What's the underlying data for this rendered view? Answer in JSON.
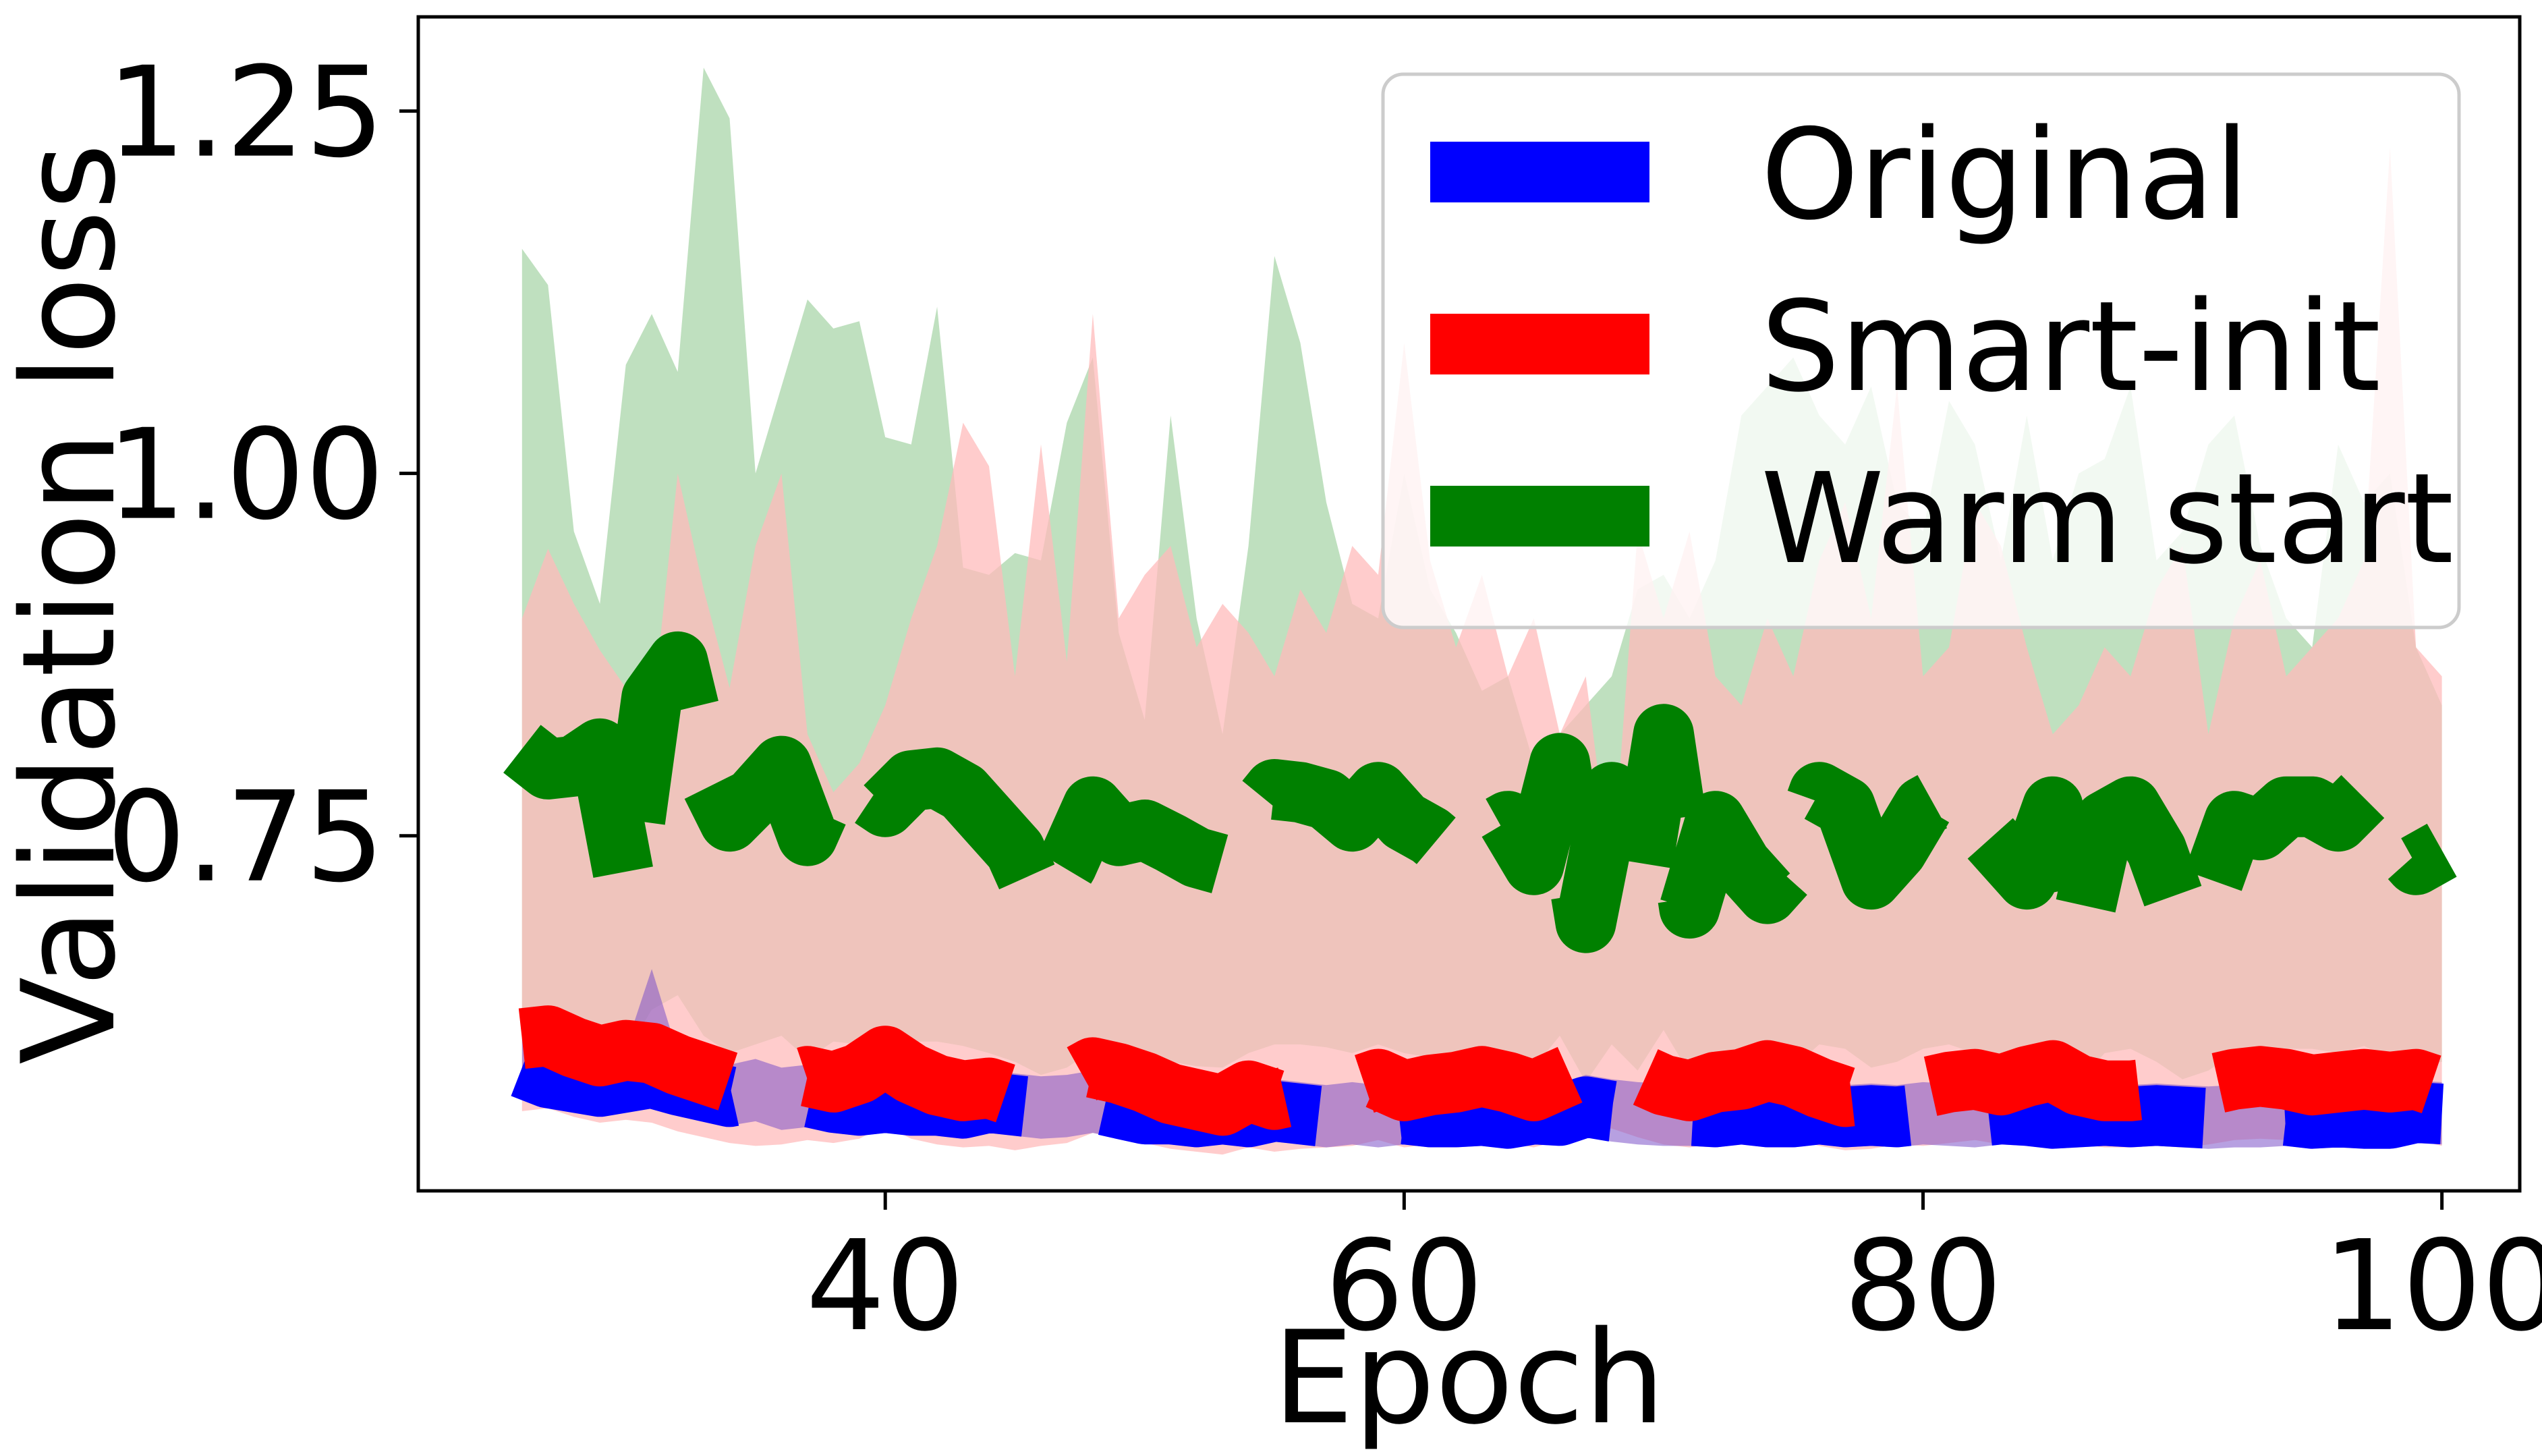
{
  "chart_data": {
    "type": "line",
    "title": "",
    "xlabel": "Epoch",
    "ylabel": "Validation loss",
    "xlim": [
      22,
      103
    ],
    "ylim": [
      0.505,
      1.315
    ],
    "xticks": [
      40,
      60,
      80,
      100
    ],
    "xtick_labels": [
      "40",
      "60",
      "80",
      "100"
    ],
    "yticks": [
      0.75,
      1.0,
      1.25
    ],
    "ytick_labels": [
      "0.75",
      "1.00",
      "1.25"
    ],
    "grid": false,
    "legend": {
      "placement": "top-right"
    },
    "x": [
      26,
      27,
      28,
      29,
      30,
      31,
      32,
      33,
      34,
      35,
      36,
      37,
      38,
      39,
      40,
      41,
      42,
      43,
      44,
      45,
      46,
      47,
      48,
      49,
      50,
      51,
      52,
      53,
      54,
      55,
      56,
      57,
      58,
      59,
      60,
      61,
      62,
      63,
      64,
      65,
      66,
      67,
      68,
      69,
      70,
      71,
      72,
      73,
      74,
      75,
      76,
      77,
      78,
      79,
      80,
      81,
      82,
      83,
      84,
      85,
      86,
      87,
      88,
      89,
      90,
      91,
      92,
      93,
      94,
      95,
      96,
      97,
      98,
      99,
      100
    ],
    "series": [
      {
        "name": "Original",
        "color": "#0000ff",
        "band_color": "#7b52c9",
        "values": [
          0.59,
          0.583,
          0.58,
          0.577,
          0.58,
          0.583,
          0.578,
          0.574,
          0.57,
          0.574,
          0.568,
          0.57,
          0.566,
          0.564,
          0.566,
          0.564,
          0.564,
          0.562,
          0.566,
          0.564,
          0.562,
          0.563,
          0.566,
          0.562,
          0.558,
          0.558,
          0.556,
          0.558,
          0.556,
          0.56,
          0.558,
          0.556,
          0.558,
          0.556,
          0.558,
          0.556,
          0.556,
          0.557,
          0.555,
          0.558,
          0.557,
          0.563,
          0.56,
          0.558,
          0.557,
          0.557,
          0.556,
          0.558,
          0.556,
          0.556,
          0.558,
          0.556,
          0.557,
          0.556,
          0.558,
          0.557,
          0.556,
          0.558,
          0.557,
          0.555,
          0.556,
          0.557,
          0.556,
          0.557,
          0.556,
          0.555,
          0.556,
          0.556,
          0.557,
          0.555,
          0.556,
          0.555,
          0.555,
          0.559,
          0.558
        ],
        "lower": [
          0.568,
          0.562,
          0.56,
          0.557,
          0.56,
          0.562,
          0.557,
          0.553,
          0.55,
          0.553,
          0.547,
          0.549,
          0.545,
          0.543,
          0.545,
          0.543,
          0.543,
          0.541,
          0.545,
          0.543,
          0.541,
          0.542,
          0.545,
          0.541,
          0.537,
          0.537,
          0.535,
          0.537,
          0.535,
          0.539,
          0.537,
          0.535,
          0.537,
          0.535,
          0.537,
          0.535,
          0.535,
          0.536,
          0.534,
          0.537,
          0.536,
          0.542,
          0.539,
          0.537,
          0.536,
          0.536,
          0.535,
          0.537,
          0.535,
          0.535,
          0.537,
          0.535,
          0.536,
          0.535,
          0.537,
          0.536,
          0.535,
          0.537,
          0.536,
          0.534,
          0.535,
          0.536,
          0.535,
          0.536,
          0.535,
          0.534,
          0.535,
          0.535,
          0.536,
          0.534,
          0.535,
          0.534,
          0.534,
          0.538,
          0.537
        ],
        "upper": [
          0.612,
          0.606,
          0.602,
          0.598,
          0.604,
          0.658,
          0.6,
          0.596,
          0.592,
          0.596,
          0.59,
          0.592,
          0.588,
          0.586,
          0.588,
          0.586,
          0.586,
          0.584,
          0.588,
          0.586,
          0.584,
          0.585,
          0.588,
          0.584,
          0.58,
          0.58,
          0.578,
          0.58,
          0.578,
          0.582,
          0.58,
          0.578,
          0.58,
          0.578,
          0.58,
          0.578,
          0.578,
          0.579,
          0.577,
          0.58,
          0.579,
          0.585,
          0.582,
          0.58,
          0.579,
          0.579,
          0.578,
          0.58,
          0.578,
          0.578,
          0.58,
          0.578,
          0.579,
          0.578,
          0.58,
          0.579,
          0.578,
          0.58,
          0.579,
          0.577,
          0.578,
          0.579,
          0.578,
          0.579,
          0.578,
          0.577,
          0.578,
          0.578,
          0.579,
          0.577,
          0.578,
          0.577,
          0.577,
          0.581,
          0.58
        ]
      },
      {
        "name": "Smart-init",
        "color": "#ff0000",
        "band_color": "#ffbbbb",
        "values": [
          0.61,
          0.612,
          0.604,
          0.598,
          0.602,
          0.6,
          0.592,
          0.586,
          0.58,
          0.576,
          0.578,
          0.584,
          0.58,
          0.586,
          0.598,
          0.586,
          0.578,
          0.574,
          0.576,
          0.57,
          0.576,
          0.58,
          0.59,
          0.586,
          0.58,
          0.572,
          0.568,
          0.564,
          0.574,
          0.568,
          0.572,
          0.574,
          0.576,
          0.582,
          0.574,
          0.578,
          0.58,
          0.584,
          0.58,
          0.574,
          0.582,
          0.59,
          0.594,
          0.586,
          0.578,
          0.574,
          0.58,
          0.582,
          0.588,
          0.584,
          0.576,
          0.57,
          0.572,
          0.578,
          0.576,
          0.58,
          0.582,
          0.578,
          0.584,
          0.588,
          0.578,
          0.574,
          0.574,
          0.576,
          0.574,
          0.578,
          0.582,
          0.584,
          0.582,
          0.578,
          0.58,
          0.582,
          0.58,
          0.582,
          0.576
        ],
        "lower": [
          0.56,
          0.562,
          0.556,
          0.552,
          0.554,
          0.552,
          0.546,
          0.542,
          0.538,
          0.536,
          0.537,
          0.54,
          0.538,
          0.541,
          0.55,
          0.541,
          0.537,
          0.535,
          0.536,
          0.533,
          0.536,
          0.538,
          0.545,
          0.542,
          0.538,
          0.534,
          0.532,
          0.53,
          0.535,
          0.532,
          0.534,
          0.535,
          0.536,
          0.54,
          0.535,
          0.537,
          0.538,
          0.541,
          0.538,
          0.535,
          0.54,
          0.545,
          0.548,
          0.542,
          0.537,
          0.535,
          0.538,
          0.54,
          0.543,
          0.541,
          0.536,
          0.533,
          0.534,
          0.537,
          0.536,
          0.538,
          0.54,
          0.537,
          0.541,
          0.543,
          0.537,
          0.535,
          0.535,
          0.536,
          0.535,
          0.537,
          0.54,
          0.541,
          0.54,
          0.537,
          0.538,
          0.54,
          0.538,
          0.54,
          0.536
        ],
        "upper": [
          0.9,
          0.948,
          0.91,
          0.878,
          0.852,
          0.83,
          1.0,
          0.92,
          0.852,
          0.95,
          1.0,
          0.82,
          0.78,
          0.8,
          0.84,
          0.9,
          0.95,
          1.035,
          1.005,
          0.86,
          1.02,
          0.87,
          1.11,
          0.9,
          0.93,
          0.95,
          0.88,
          0.91,
          0.89,
          0.86,
          0.92,
          0.89,
          0.95,
          0.93,
          1.09,
          0.94,
          0.88,
          0.93,
          0.86,
          0.9,
          0.82,
          0.86,
          0.72,
          0.96,
          0.9,
          0.96,
          0.86,
          0.84,
          0.9,
          0.86,
          0.94,
          0.98,
          0.9,
          1.06,
          0.86,
          0.88,
          0.98,
          0.95,
          0.88,
          0.82,
          0.84,
          0.88,
          0.86,
          0.92,
          0.95,
          0.82,
          0.9,
          0.94,
          0.86,
          0.88,
          0.9,
          0.94,
          1.225,
          0.88,
          0.86
        ]
      },
      {
        "name": "Warm start",
        "color": "#008000",
        "band_color": "#bfe0bf",
        "values": [
          0.81,
          0.796,
          0.798,
          0.81,
          0.715,
          0.845,
          0.87,
          0.796,
          0.76,
          0.778,
          0.798,
          0.75,
          0.79,
          0.782,
          0.77,
          0.788,
          0.79,
          0.78,
          0.76,
          0.74,
          0.7,
          0.73,
          0.77,
          0.75,
          0.754,
          0.745,
          0.735,
          0.73,
          0.76,
          0.782,
          0.78,
          0.775,
          0.76,
          0.78,
          0.76,
          0.75,
          0.735,
          0.75,
          0.76,
          0.73,
          0.8,
          0.69,
          0.78,
          0.71,
          0.82,
          0.7,
          0.76,
          0.73,
          0.71,
          0.73,
          0.78,
          0.77,
          0.72,
          0.74,
          0.77,
          0.78,
          0.76,
          0.74,
          0.72,
          0.77,
          0.68,
          0.76,
          0.77,
          0.74,
          0.69,
          0.71,
          0.76,
          0.754,
          0.77,
          0.77,
          0.76,
          0.778,
          0.75,
          0.73,
          0.74
        ],
        "lower": [
          0.62,
          0.61,
          0.612,
          0.62,
          0.6,
          0.63,
          0.64,
          0.612,
          0.6,
          0.606,
          0.612,
          0.596,
          0.608,
          0.606,
          0.602,
          0.608,
          0.608,
          0.605,
          0.6,
          0.594,
          0.585,
          0.59,
          0.602,
          0.596,
          0.597,
          0.594,
          0.591,
          0.59,
          0.6,
          0.606,
          0.606,
          0.604,
          0.6,
          0.606,
          0.6,
          0.597,
          0.592,
          0.597,
          0.6,
          0.59,
          0.612,
          0.58,
          0.606,
          0.588,
          0.616,
          0.586,
          0.6,
          0.59,
          0.588,
          0.59,
          0.606,
          0.603,
          0.59,
          0.594,
          0.603,
          0.606,
          0.6,
          0.594,
          0.59,
          0.603,
          0.58,
          0.6,
          0.603,
          0.594,
          0.582,
          0.588,
          0.6,
          0.598,
          0.603,
          0.603,
          0.6,
          0.605,
          0.596,
          0.59,
          0.594
        ],
        "upper": [
          1.155,
          1.13,
          0.96,
          0.91,
          1.075,
          1.11,
          1.07,
          1.28,
          1.245,
          1.0,
          1.06,
          1.12,
          1.1,
          1.105,
          1.025,
          1.02,
          1.115,
          0.935,
          0.93,
          0.945,
          0.94,
          1.035,
          1.08,
          0.89,
          0.83,
          1.04,
          0.9,
          0.82,
          0.95,
          1.15,
          1.09,
          0.98,
          0.91,
          0.9,
          1.0,
          0.92,
          0.89,
          0.85,
          0.86,
          0.8,
          0.82,
          0.84,
          0.86,
          0.92,
          0.93,
          0.9,
          0.94,
          1.04,
          1.06,
          1.08,
          1.04,
          1.02,
          1.06,
          0.98,
          0.96,
          1.05,
          1.02,
          0.94,
          1.04,
          0.94,
          1.0,
          1.01,
          1.06,
          0.94,
          0.96,
          1.02,
          1.04,
          0.95,
          0.9,
          0.88,
          1.02,
          0.98,
          1.0,
          0.88,
          0.84
        ]
      }
    ]
  }
}
